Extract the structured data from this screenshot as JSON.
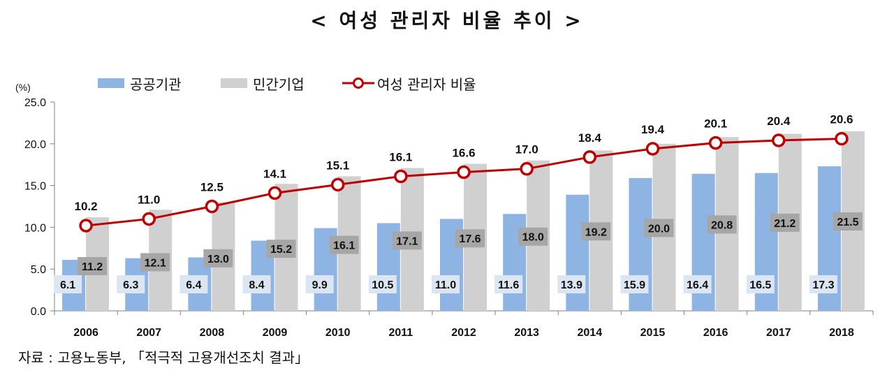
{
  "title": "< 여성 관리자 비율 추이 >",
  "source": "자료 : 고용노동부, 「적극적 고용개선조치 결과」",
  "chart_data": {
    "type": "bar",
    "unit_label": "(%)",
    "categories": [
      "2006",
      "2007",
      "2008",
      "2009",
      "2010",
      "2011",
      "2012",
      "2013",
      "2014",
      "2015",
      "2016",
      "2017",
      "2018"
    ],
    "series": [
      {
        "name": "공공기관",
        "kind": "bar",
        "color": "#8EB4E3",
        "label_bg": "#DCE6F2",
        "values": [
          6.1,
          6.3,
          6.4,
          8.4,
          9.9,
          10.5,
          11.0,
          11.6,
          13.9,
          15.9,
          16.4,
          16.5,
          17.3
        ],
        "labels": [
          "6.1",
          "6.3",
          "6.4",
          "8.4",
          "9.9",
          "10.5",
          "11.0",
          "11.6",
          "13.9",
          "15.9",
          "16.4",
          "16.5",
          "17.3"
        ]
      },
      {
        "name": "민간기업",
        "kind": "bar",
        "color": "#D0D0D0",
        "label_bg": "#A6A6A6",
        "values": [
          11.2,
          12.1,
          13.0,
          15.2,
          16.1,
          17.1,
          17.6,
          18.0,
          19.2,
          20.0,
          20.8,
          21.2,
          21.5
        ],
        "labels": [
          "11.2",
          "12.1",
          "13.0",
          "15.2",
          "16.1",
          "17.1",
          "17.6",
          "18.0",
          "19.2",
          "20.0",
          "20.8",
          "21.2",
          "21.5"
        ]
      },
      {
        "name": "여성 관리자 비율",
        "kind": "line",
        "color": "#C00000",
        "values": [
          10.2,
          11.0,
          12.5,
          14.1,
          15.1,
          16.1,
          16.6,
          17.0,
          18.4,
          19.4,
          20.1,
          20.4,
          20.6
        ],
        "labels": [
          "10.2",
          "11.0",
          "12.5",
          "14.1",
          "15.1",
          "16.1",
          "16.6",
          "17.0",
          "18.4",
          "19.4",
          "20.1",
          "20.4",
          "20.6"
        ]
      }
    ],
    "ylim": [
      0,
      25
    ],
    "yticks": [
      "0.0",
      "5.0",
      "10.0",
      "15.0",
      "20.0",
      "25.0"
    ],
    "legend_position": "top-left",
    "grid": false
  }
}
